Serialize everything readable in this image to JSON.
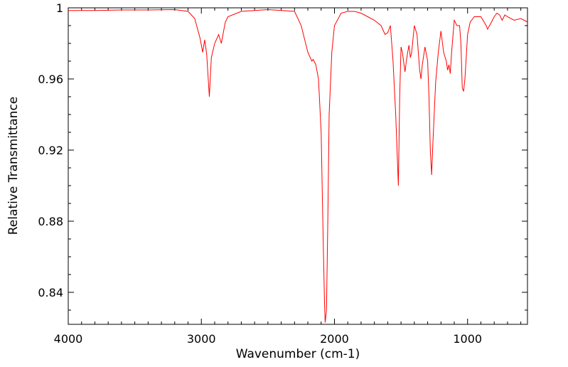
{
  "chart_data": {
    "type": "line",
    "title": "",
    "xlabel": "Wavenumber (cm-1)",
    "ylabel": "Relative Transmittance",
    "xlim": [
      4000,
      550
    ],
    "ylim": [
      0.822,
      1.0
    ],
    "x_reversed": true,
    "grid": false,
    "legend": "none",
    "x_ticks": [
      4000,
      3000,
      2000,
      1000
    ],
    "x_tick_labels": [
      "4000",
      "3000",
      "2000",
      "1000"
    ],
    "y_ticks": [
      0.84,
      0.88,
      0.92,
      0.96,
      1.0
    ],
    "y_tick_labels": [
      "0.84",
      "0.88",
      "0.92",
      "0.96",
      "1"
    ],
    "series": [
      {
        "color": "#ff0000",
        "x": [
          4000,
          3800,
          3600,
          3400,
          3200,
          3100,
          3050,
          3010,
          2990,
          2975,
          2960,
          2940,
          2925,
          2900,
          2870,
          2850,
          2820,
          2800,
          2700,
          2500,
          2300,
          2250,
          2200,
          2170,
          2160,
          2140,
          2120,
          2100,
          2085,
          2075,
          2070,
          2060,
          2050,
          2040,
          2020,
          2000,
          1950,
          1900,
          1850,
          1800,
          1750,
          1700,
          1650,
          1620,
          1600,
          1580,
          1560,
          1540,
          1520,
          1510,
          1500,
          1490,
          1470,
          1460,
          1450,
          1440,
          1430,
          1420,
          1400,
          1380,
          1360,
          1350,
          1340,
          1320,
          1300,
          1290,
          1280,
          1270,
          1260,
          1240,
          1220,
          1200,
          1180,
          1160,
          1150,
          1140,
          1130,
          1120,
          1100,
          1080,
          1060,
          1050,
          1040,
          1030,
          1020,
          1000,
          980,
          950,
          900,
          860,
          850,
          820,
          800,
          780,
          760,
          740,
          720,
          700,
          650,
          600,
          550
        ],
        "y": [
          0.9985,
          0.9985,
          0.9988,
          0.9988,
          0.999,
          0.998,
          0.994,
          0.983,
          0.975,
          0.982,
          0.974,
          0.95,
          0.972,
          0.98,
          0.985,
          0.98,
          0.992,
          0.995,
          0.998,
          0.999,
          0.998,
          0.99,
          0.975,
          0.97,
          0.971,
          0.968,
          0.96,
          0.93,
          0.87,
          0.835,
          0.823,
          0.83,
          0.88,
          0.94,
          0.975,
          0.99,
          0.997,
          0.998,
          0.998,
          0.997,
          0.995,
          0.993,
          0.99,
          0.985,
          0.986,
          0.99,
          0.97,
          0.94,
          0.9,
          0.95,
          0.978,
          0.975,
          0.964,
          0.97,
          0.975,
          0.979,
          0.972,
          0.975,
          0.99,
          0.985,
          0.965,
          0.96,
          0.968,
          0.978,
          0.97,
          0.95,
          0.92,
          0.906,
          0.925,
          0.958,
          0.975,
          0.987,
          0.975,
          0.97,
          0.965,
          0.968,
          0.963,
          0.975,
          0.993,
          0.99,
          0.99,
          0.98,
          0.955,
          0.953,
          0.96,
          0.985,
          0.992,
          0.995,
          0.995,
          0.99,
          0.988,
          0.992,
          0.995,
          0.997,
          0.996,
          0.993,
          0.996,
          0.995,
          0.993,
          0.994,
          0.992
        ]
      }
    ]
  }
}
